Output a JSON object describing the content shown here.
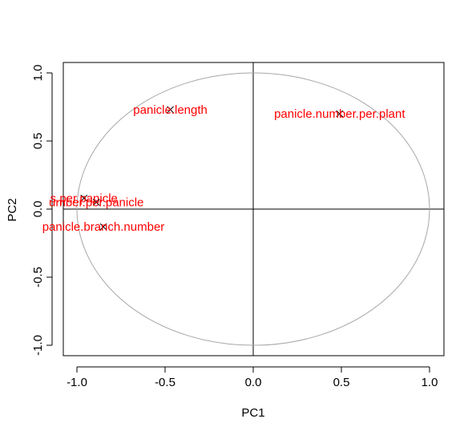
{
  "chart_data": {
    "type": "scatter",
    "title": "",
    "xlabel": "PC1",
    "ylabel": "PC2",
    "xlim": [
      -1.0,
      1.0
    ],
    "ylim": [
      -1.0,
      1.0
    ],
    "xticks": [
      -1.0,
      -0.5,
      0.0,
      0.5,
      1.0
    ],
    "yticks": [
      -1.0,
      -0.5,
      0.0,
      0.5,
      1.0
    ],
    "xtick_labels": [
      "-1.0",
      "-0.5",
      "0.0",
      "0.5",
      "1.0"
    ],
    "ytick_labels": [
      "-1.0",
      "-0.5",
      "0.0",
      "0.5",
      "1.0"
    ],
    "unit_circle": true,
    "reference_lines": {
      "x": 0,
      "y": 0
    },
    "label_color": "#ff0000",
    "marker_color": "#000000",
    "circle_color": "#a6a6a6",
    "points": [
      {
        "label": "panicle.length",
        "x": -0.47,
        "y": 0.73
      },
      {
        "label": "panicle.number.per.plant",
        "x": 0.49,
        "y": 0.7
      },
      {
        "label": "s.per.panicle",
        "x": -0.96,
        "y": 0.08
      },
      {
        "label": "umber.per.panicle",
        "x": -0.89,
        "y": 0.05
      },
      {
        "label": "panicle.branch.number",
        "x": -0.85,
        "y": -0.13
      }
    ]
  }
}
